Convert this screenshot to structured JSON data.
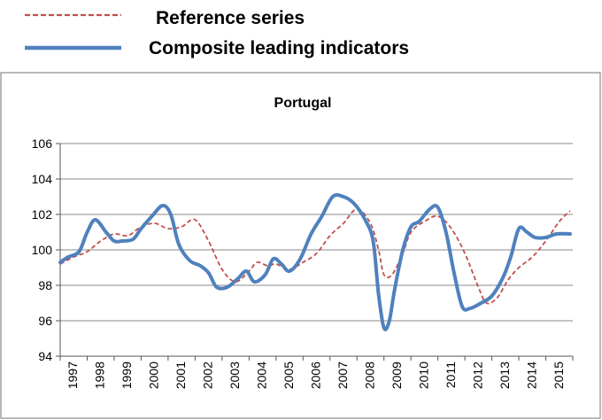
{
  "chart_data": {
    "type": "line",
    "title": "Portugal",
    "xlabel": "",
    "ylabel": "",
    "ylim": [
      94,
      106
    ],
    "yticks": [
      94,
      96,
      98,
      100,
      102,
      104,
      106
    ],
    "xlim": [
      1997,
      2016
    ],
    "xticks": [
      "1997",
      "1998",
      "1999",
      "2000",
      "2001",
      "2002",
      "2003",
      "2004",
      "2005",
      "2006",
      "2007",
      "2008",
      "2009",
      "2010",
      "2011",
      "2012",
      "2013",
      "2014",
      "2015"
    ],
    "grid": "horizontal",
    "legend_position": "top",
    "series": [
      {
        "name": "Reference series",
        "style": "dashed",
        "color": "#c0504d",
        "points": [
          [
            1997.0,
            99.2
          ],
          [
            1997.5,
            99.6
          ],
          [
            1998.0,
            99.9
          ],
          [
            1998.5,
            100.5
          ],
          [
            1999.0,
            100.9
          ],
          [
            1999.5,
            100.8
          ],
          [
            2000.0,
            101.3
          ],
          [
            2000.5,
            101.5
          ],
          [
            2001.0,
            101.2
          ],
          [
            2001.5,
            101.3
          ],
          [
            2002.0,
            101.7
          ],
          [
            2002.5,
            100.5
          ],
          [
            2003.0,
            98.9
          ],
          [
            2003.5,
            98.2
          ],
          [
            2004.0,
            98.8
          ],
          [
            2004.3,
            99.3
          ],
          [
            2004.7,
            99.1
          ],
          [
            2005.0,
            99.2
          ],
          [
            2005.5,
            98.9
          ],
          [
            2006.0,
            99.3
          ],
          [
            2006.5,
            99.8
          ],
          [
            2007.0,
            100.8
          ],
          [
            2007.5,
            101.5
          ],
          [
            2008.0,
            102.3
          ],
          [
            2008.5,
            101.5
          ],
          [
            2008.8,
            100.0
          ],
          [
            2009.0,
            98.6
          ],
          [
            2009.3,
            98.6
          ],
          [
            2009.7,
            99.8
          ],
          [
            2010.0,
            101.0
          ],
          [
            2010.5,
            101.6
          ],
          [
            2011.0,
            101.9
          ],
          [
            2011.5,
            101.2
          ],
          [
            2012.0,
            99.8
          ],
          [
            2012.5,
            97.9
          ],
          [
            2012.8,
            97.0
          ],
          [
            2013.2,
            97.3
          ],
          [
            2013.6,
            98.3
          ],
          [
            2014.0,
            99.0
          ],
          [
            2014.5,
            99.6
          ],
          [
            2015.0,
            100.5
          ],
          [
            2015.5,
            101.6
          ],
          [
            2015.9,
            102.2
          ]
        ]
      },
      {
        "name": "Composite leading indicators",
        "style": "solid",
        "color": "#4f81bd",
        "points": [
          [
            1997.0,
            99.3
          ],
          [
            1997.3,
            99.6
          ],
          [
            1997.7,
            99.9
          ],
          [
            1998.0,
            101.0
          ],
          [
            1998.3,
            101.7
          ],
          [
            1998.7,
            101.0
          ],
          [
            1999.0,
            100.5
          ],
          [
            1999.3,
            100.5
          ],
          [
            1999.7,
            100.6
          ],
          [
            2000.0,
            101.2
          ],
          [
            2000.4,
            101.9
          ],
          [
            2000.8,
            102.5
          ],
          [
            2001.1,
            102.0
          ],
          [
            2001.4,
            100.3
          ],
          [
            2001.8,
            99.4
          ],
          [
            2002.2,
            99.1
          ],
          [
            2002.5,
            98.7
          ],
          [
            2002.8,
            97.9
          ],
          [
            2003.2,
            97.9
          ],
          [
            2003.6,
            98.4
          ],
          [
            2003.9,
            98.8
          ],
          [
            2004.2,
            98.2
          ],
          [
            2004.6,
            98.6
          ],
          [
            2004.9,
            99.5
          ],
          [
            2005.2,
            99.2
          ],
          [
            2005.5,
            98.8
          ],
          [
            2005.9,
            99.5
          ],
          [
            2006.3,
            100.9
          ],
          [
            2006.7,
            101.9
          ],
          [
            2007.1,
            103.0
          ],
          [
            2007.5,
            103.0
          ],
          [
            2007.9,
            102.6
          ],
          [
            2008.3,
            101.7
          ],
          [
            2008.6,
            100.5
          ],
          [
            2008.8,
            97.5
          ],
          [
            2009.0,
            95.6
          ],
          [
            2009.2,
            96.0
          ],
          [
            2009.4,
            97.8
          ],
          [
            2009.7,
            100.0
          ],
          [
            2010.0,
            101.3
          ],
          [
            2010.3,
            101.6
          ],
          [
            2010.7,
            102.3
          ],
          [
            2011.0,
            102.4
          ],
          [
            2011.3,
            101.0
          ],
          [
            2011.6,
            98.7
          ],
          [
            2011.9,
            96.8
          ],
          [
            2012.2,
            96.7
          ],
          [
            2012.6,
            97.0
          ],
          [
            2013.0,
            97.4
          ],
          [
            2013.4,
            98.4
          ],
          [
            2013.7,
            99.6
          ],
          [
            2014.0,
            101.2
          ],
          [
            2014.3,
            101.0
          ],
          [
            2014.6,
            100.7
          ],
          [
            2015.0,
            100.7
          ],
          [
            2015.4,
            100.9
          ],
          [
            2015.9,
            100.9
          ]
        ]
      }
    ]
  },
  "colors": {
    "reference_series": "#c0504d",
    "composite_leading_indicators": "#4f81bd",
    "grid": "#8a8a8a",
    "frame": "#8a8a8a"
  }
}
